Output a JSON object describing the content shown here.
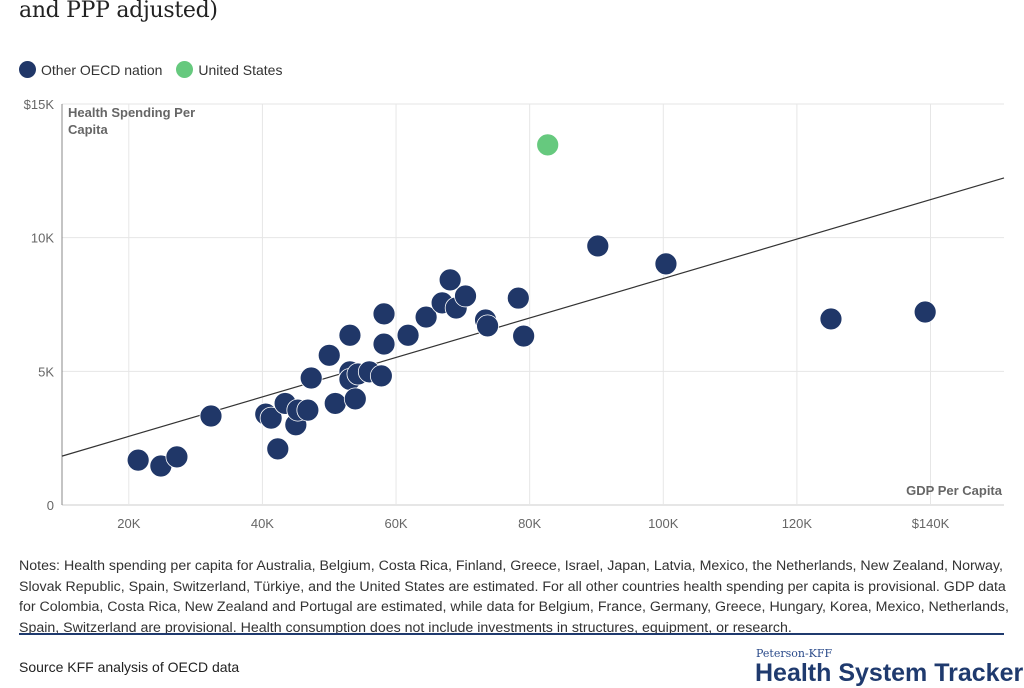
{
  "title": "and PPP adjusted)",
  "legend": [
    {
      "label": "Other OECD nation",
      "color": "#203768"
    },
    {
      "label": "United States",
      "color": "#66c97e"
    }
  ],
  "chart_data": {
    "type": "scatter",
    "ylabel": "Health Spending Per Capita",
    "xlabel": "GDP Per Capita",
    "xlim": [
      10000,
      151000
    ],
    "ylim": [
      0,
      15000
    ],
    "x_ticks": [
      {
        "v": 20000,
        "label": "20K"
      },
      {
        "v": 40000,
        "label": "40K"
      },
      {
        "v": 60000,
        "label": "60K"
      },
      {
        "v": 80000,
        "label": "80K"
      },
      {
        "v": 100000,
        "label": "100K"
      },
      {
        "v": 120000,
        "label": "120K"
      },
      {
        "v": 140000,
        "label": "$140K"
      }
    ],
    "y_ticks": [
      {
        "v": 0,
        "label": "0"
      },
      {
        "v": 5000,
        "label": "5K"
      },
      {
        "v": 10000,
        "label": "10K"
      },
      {
        "v": 15000,
        "label": "$15K"
      }
    ],
    "grid": true,
    "trendline": {
      "slope": 0.0738,
      "intercept": 1090
    },
    "series": [
      {
        "name": "Other OECD nation",
        "color": "#203768",
        "points": [
          [
            21400,
            1680
          ],
          [
            24800,
            1460
          ],
          [
            27200,
            1800
          ],
          [
            32300,
            3330
          ],
          [
            40500,
            3400
          ],
          [
            41300,
            3250
          ],
          [
            42300,
            2100
          ],
          [
            43400,
            3800
          ],
          [
            45000,
            3000
          ],
          [
            45300,
            3550
          ],
          [
            46800,
            3550
          ],
          [
            47300,
            4750
          ],
          [
            50000,
            5600
          ],
          [
            50900,
            3800
          ],
          [
            53100,
            6350
          ],
          [
            53100,
            4980
          ],
          [
            53100,
            4700
          ],
          [
            53900,
            3970
          ],
          [
            54300,
            4900
          ],
          [
            56000,
            4980
          ],
          [
            57800,
            4830
          ],
          [
            58200,
            7150
          ],
          [
            58200,
            6020
          ],
          [
            61800,
            6350
          ],
          [
            64500,
            7030
          ],
          [
            66900,
            7560
          ],
          [
            68100,
            8420
          ],
          [
            69000,
            7370
          ],
          [
            70400,
            7820
          ],
          [
            73400,
            6920
          ],
          [
            73700,
            6700
          ],
          [
            78300,
            7740
          ],
          [
            79100,
            6320
          ],
          [
            90200,
            9690
          ],
          [
            100400,
            9020
          ],
          [
            125100,
            6960
          ],
          [
            139200,
            7220
          ]
        ]
      },
      {
        "name": "United States",
        "color": "#66c97e",
        "points": [
          [
            82700,
            13470
          ]
        ]
      }
    ]
  },
  "notes": "Notes: Health spending per capita for Australia, Belgium, Costa Rica, Finland, Greece, Israel, Japan, Latvia, Mexico, the Netherlands, New Zealand, Norway, Slovak Republic, Spain, Switzerland, Türkiye, and the United States are estimated. For all other countries health spending per capita is provisional. GDP data for Colombia, Costa Rica, New Zealand and Portugal are estimated, while data for Belgium, France, Germany, Greece, Hungary, Korea, Mexico, Netherlands, Spain, Switzerland are provisional. Health consumption does not include investments in structures, equipment, or research.",
  "source": "Source KFF analysis of OECD data",
  "logo": {
    "top": "Peterson-KFF",
    "main": "Health System Tracker"
  }
}
